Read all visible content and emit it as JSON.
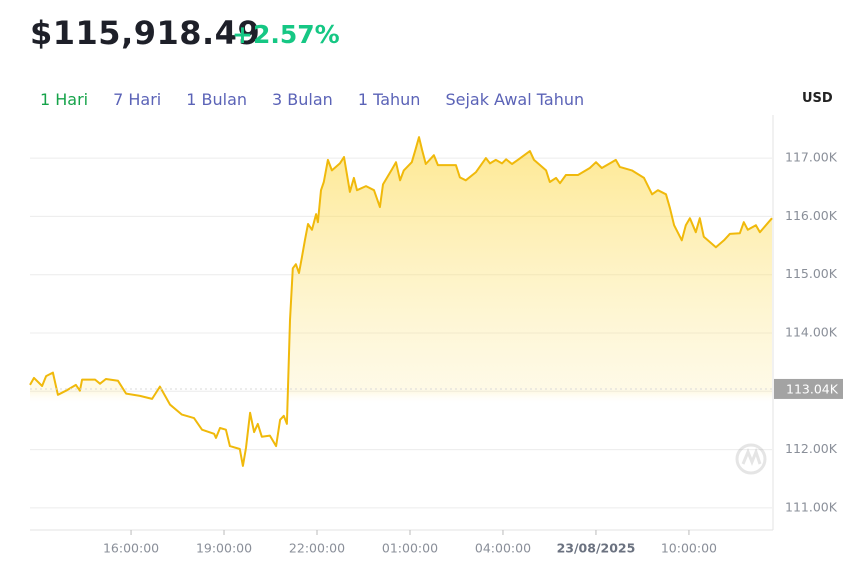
{
  "header": {
    "price": "$115,918.49",
    "change": "+2.57%"
  },
  "tabs": [
    "1 Hari",
    "7 Hari",
    "1 Bulan",
    "3 Bulan",
    "1 Tahun",
    "Sejak Awal Tahun"
  ],
  "active_tab": 0,
  "chart_data": {
    "type": "line",
    "currency": "USD",
    "color": "#f0b90b",
    "grid": true,
    "x": [
      12.74,
      12.87,
      13.13,
      13.26,
      13.48,
      13.64,
      13.9,
      14.22,
      14.35,
      14.42,
      14.84,
      15.0,
      15.19,
      15.58,
      15.84,
      16.29,
      16.68,
      16.93,
      17.26,
      17.64,
      18.03,
      18.29,
      18.68,
      18.74,
      18.87,
      19.06,
      19.19,
      19.51,
      19.61,
      19.71,
      19.84,
      19.97,
      20.09,
      20.22,
      20.48,
      20.68,
      20.81,
      20.93,
      21.03,
      21.13,
      21.22,
      21.32,
      21.42,
      21.51,
      21.61,
      21.71,
      21.84,
      21.97,
      22.03,
      22.13,
      22.22,
      22.35,
      22.48,
      22.74,
      22.87,
      23.06,
      23.19,
      23.29,
      23.58,
      23.84,
      24.03,
      24.13,
      24.42,
      24.55,
      24.68,
      24.8,
      25.06,
      25.19,
      25.29,
      25.39,
      25.51,
      25.77,
      25.9,
      26.22,
      26.48,
      26.61,
      26.8,
      27.13,
      27.45,
      27.58,
      27.77,
      27.97,
      28.1,
      28.29,
      28.48,
      28.87,
      29.0,
      29.39,
      29.51,
      29.71,
      29.84,
      30.03,
      30.42,
      30.8,
      31.0,
      31.19,
      31.51,
      31.64,
      31.77,
      32.16,
      32.55,
      32.81,
      33.0,
      33.26,
      33.39,
      33.52,
      33.77,
      33.9,
      34.03,
      34.22,
      34.35,
      34.48,
      34.87,
      35.13,
      35.32,
      35.64,
      35.77,
      35.9,
      36.16,
      36.29,
      36.55,
      36.68
    ],
    "values": [
      113110,
      113230,
      113090,
      113260,
      113320,
      112940,
      113010,
      113110,
      113010,
      113200,
      113200,
      113130,
      113210,
      113180,
      112960,
      112920,
      112870,
      113080,
      112770,
      112600,
      112540,
      112340,
      112270,
      112200,
      112370,
      112340,
      112060,
      112010,
      111720,
      112030,
      112630,
      112300,
      112440,
      112220,
      112240,
      112060,
      112510,
      112580,
      112440,
      114220,
      115110,
      115180,
      115030,
      115290,
      115590,
      115870,
      115770,
      116040,
      115900,
      116450,
      116590,
      116970,
      116790,
      116910,
      117020,
      116420,
      116660,
      116450,
      116520,
      116450,
      116160,
      116550,
      116810,
      116930,
      116620,
      116790,
      116930,
      117170,
      117360,
      117140,
      116900,
      117050,
      116880,
      116880,
      116880,
      116670,
      116620,
      116760,
      117000,
      116910,
      116970,
      116910,
      116980,
      116900,
      116970,
      117120,
      116970,
      116790,
      116590,
      116660,
      116570,
      116710,
      116710,
      116830,
      116930,
      116830,
      116930,
      116970,
      116850,
      116790,
      116660,
      116380,
      116450,
      116380,
      116140,
      115850,
      115590,
      115850,
      115970,
      115730,
      115970,
      115650,
      115470,
      115590,
      115700,
      115710,
      115900,
      115770,
      115850,
      115730,
      115890,
      115970
    ],
    "xlim": [
      12.74,
      36.68
    ],
    "xticks": [
      {
        "value": 16,
        "label": "16:00:00"
      },
      {
        "value": 19,
        "label": "19:00:00"
      },
      {
        "value": 22,
        "label": "22:00:00"
      },
      {
        "value": 25,
        "label": "01:00:00"
      },
      {
        "value": 28,
        "label": "04:00:00"
      },
      {
        "value": 31,
        "label": "23/08/2025"
      },
      {
        "value": 34,
        "label": "10:00:00"
      }
    ],
    "ylim": [
      110620,
      117740
    ],
    "yticks": [
      {
        "value": 111000,
        "label": "111.00K"
      },
      {
        "value": 112000,
        "label": "112.00K"
      },
      {
        "value": 113000,
        "label": "113.00K"
      },
      {
        "value": 114000,
        "label": "114.00K"
      },
      {
        "value": 115000,
        "label": "115.00K"
      },
      {
        "value": 116000,
        "label": "116.00K"
      },
      {
        "value": 117000,
        "label": "117.00K"
      }
    ],
    "reference": {
      "value": 113040,
      "label": "113.04K"
    }
  }
}
